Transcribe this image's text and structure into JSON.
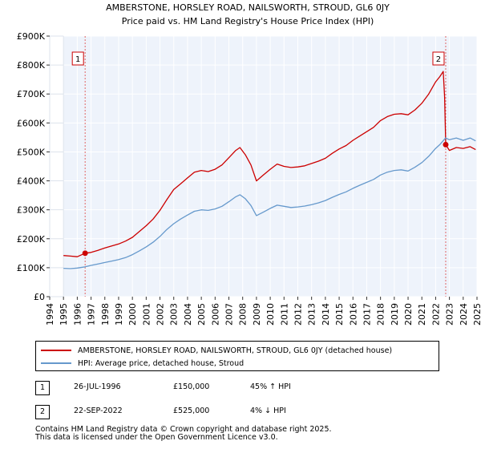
{
  "chart_data": {
    "type": "line",
    "title": "AMBERSTONE, HORSLEY ROAD, NAILSWORTH, STROUD, GL6 0JY",
    "subtitle": "Price paid vs. HM Land Registry's House Price Index (HPI)",
    "xlim": [
      1994,
      2025
    ],
    "ylim": [
      0,
      900000
    ],
    "x_ticks": [
      1994,
      1995,
      1996,
      1997,
      1998,
      1999,
      2000,
      2001,
      2002,
      2003,
      2004,
      2005,
      2006,
      2007,
      2008,
      2009,
      2010,
      2011,
      2012,
      2013,
      2014,
      2015,
      2016,
      2017,
      2018,
      2019,
      2020,
      2021,
      2022,
      2023,
      2024,
      2025
    ],
    "y_ticks": [
      {
        "value": 0,
        "label": "£0"
      },
      {
        "value": 100000,
        "label": "£100K"
      },
      {
        "value": 200000,
        "label": "£200K"
      },
      {
        "value": 300000,
        "label": "£300K"
      },
      {
        "value": 400000,
        "label": "£400K"
      },
      {
        "value": 500000,
        "label": "£500K"
      },
      {
        "value": 600000,
        "label": "£600K"
      },
      {
        "value": 700000,
        "label": "£700K"
      },
      {
        "value": 800000,
        "label": "£800K"
      },
      {
        "value": 900000,
        "label": "£900K"
      }
    ],
    "grid": true,
    "data_start": 1995,
    "series": [
      {
        "name": "AMBERSTONE, HORSLEY ROAD, NAILSWORTH, STROUD, GL6 0JY (detached house)",
        "color": "#cc0000",
        "points": [
          [
            1995.0,
            142000
          ],
          [
            1995.5,
            140000
          ],
          [
            1996.0,
            138000
          ],
          [
            1996.57,
            150000
          ],
          [
            1997.0,
            153000
          ],
          [
            1997.5,
            160000
          ],
          [
            1998.0,
            168000
          ],
          [
            1998.5,
            175000
          ],
          [
            1999.0,
            182000
          ],
          [
            1999.5,
            192000
          ],
          [
            2000.0,
            205000
          ],
          [
            2000.5,
            225000
          ],
          [
            2001.0,
            245000
          ],
          [
            2001.5,
            268000
          ],
          [
            2002.0,
            298000
          ],
          [
            2002.5,
            335000
          ],
          [
            2003.0,
            370000
          ],
          [
            2003.5,
            390000
          ],
          [
            2004.0,
            410000
          ],
          [
            2004.5,
            430000
          ],
          [
            2005.0,
            436000
          ],
          [
            2005.5,
            432000
          ],
          [
            2006.0,
            440000
          ],
          [
            2006.5,
            455000
          ],
          [
            2007.0,
            480000
          ],
          [
            2007.5,
            505000
          ],
          [
            2007.8,
            515000
          ],
          [
            2008.2,
            490000
          ],
          [
            2008.6,
            455000
          ],
          [
            2009.0,
            400000
          ],
          [
            2009.5,
            420000
          ],
          [
            2010.0,
            440000
          ],
          [
            2010.5,
            458000
          ],
          [
            2011.0,
            450000
          ],
          [
            2011.5,
            446000
          ],
          [
            2012.0,
            448000
          ],
          [
            2012.5,
            452000
          ],
          [
            2013.0,
            460000
          ],
          [
            2013.5,
            468000
          ],
          [
            2014.0,
            478000
          ],
          [
            2014.5,
            495000
          ],
          [
            2015.0,
            510000
          ],
          [
            2015.5,
            522000
          ],
          [
            2016.0,
            540000
          ],
          [
            2016.5,
            555000
          ],
          [
            2017.0,
            570000
          ],
          [
            2017.5,
            585000
          ],
          [
            2018.0,
            608000
          ],
          [
            2018.5,
            622000
          ],
          [
            2019.0,
            630000
          ],
          [
            2019.5,
            632000
          ],
          [
            2020.0,
            628000
          ],
          [
            2020.5,
            645000
          ],
          [
            2021.0,
            668000
          ],
          [
            2021.5,
            700000
          ],
          [
            2022.0,
            742000
          ],
          [
            2022.3,
            760000
          ],
          [
            2022.55,
            778000
          ],
          [
            2022.65,
            690000
          ],
          [
            2022.73,
            525000
          ],
          [
            2023.0,
            505000
          ],
          [
            2023.5,
            515000
          ],
          [
            2024.0,
            512000
          ],
          [
            2024.5,
            518000
          ],
          [
            2024.9,
            508000
          ]
        ]
      },
      {
        "name": "HPI: Average price, detached house, Stroud",
        "color": "#6699cc",
        "points": [
          [
            1995.0,
            98000
          ],
          [
            1995.5,
            97000
          ],
          [
            1996.0,
            99000
          ],
          [
            1996.57,
            103000
          ],
          [
            1997.0,
            108000
          ],
          [
            1997.5,
            113000
          ],
          [
            1998.0,
            118000
          ],
          [
            1998.5,
            123000
          ],
          [
            1999.0,
            128000
          ],
          [
            1999.5,
            135000
          ],
          [
            2000.0,
            145000
          ],
          [
            2000.5,
            158000
          ],
          [
            2001.0,
            172000
          ],
          [
            2001.5,
            188000
          ],
          [
            2002.0,
            208000
          ],
          [
            2002.5,
            232000
          ],
          [
            2003.0,
            252000
          ],
          [
            2003.5,
            268000
          ],
          [
            2004.0,
            282000
          ],
          [
            2004.5,
            295000
          ],
          [
            2005.0,
            300000
          ],
          [
            2005.5,
            298000
          ],
          [
            2006.0,
            303000
          ],
          [
            2006.5,
            312000
          ],
          [
            2007.0,
            328000
          ],
          [
            2007.5,
            345000
          ],
          [
            2007.8,
            352000
          ],
          [
            2008.2,
            338000
          ],
          [
            2008.6,
            315000
          ],
          [
            2009.0,
            280000
          ],
          [
            2009.5,
            292000
          ],
          [
            2010.0,
            305000
          ],
          [
            2010.5,
            316000
          ],
          [
            2011.0,
            312000
          ],
          [
            2011.5,
            308000
          ],
          [
            2012.0,
            310000
          ],
          [
            2012.5,
            313000
          ],
          [
            2013.0,
            318000
          ],
          [
            2013.5,
            324000
          ],
          [
            2014.0,
            332000
          ],
          [
            2014.5,
            343000
          ],
          [
            2015.0,
            353000
          ],
          [
            2015.5,
            362000
          ],
          [
            2016.0,
            374000
          ],
          [
            2016.5,
            385000
          ],
          [
            2017.0,
            395000
          ],
          [
            2017.5,
            405000
          ],
          [
            2018.0,
            420000
          ],
          [
            2018.5,
            430000
          ],
          [
            2019.0,
            436000
          ],
          [
            2019.5,
            438000
          ],
          [
            2020.0,
            434000
          ],
          [
            2020.5,
            447000
          ],
          [
            2021.0,
            463000
          ],
          [
            2021.5,
            485000
          ],
          [
            2022.0,
            512000
          ],
          [
            2022.3,
            525000
          ],
          [
            2022.72,
            548000
          ],
          [
            2023.0,
            542000
          ],
          [
            2023.5,
            548000
          ],
          [
            2024.0,
            540000
          ],
          [
            2024.5,
            548000
          ],
          [
            2024.9,
            538000
          ]
        ]
      }
    ],
    "annotations": [
      {
        "label": "1",
        "x": 1996.57,
        "value": 150000
      },
      {
        "label": "2",
        "x": 2022.73,
        "value": 525000
      }
    ]
  },
  "legend": {
    "items": [
      {
        "label": "AMBERSTONE, HORSLEY ROAD, NAILSWORTH, STROUD, GL6 0JY (detached house)",
        "color": "#cc0000"
      },
      {
        "label": "HPI: Average price, detached house, Stroud",
        "color": "#6699cc"
      }
    ]
  },
  "sales": [
    {
      "marker": "1",
      "date": "26-JUL-1996",
      "price": "£150,000",
      "hpi": "45% ↑ HPI"
    },
    {
      "marker": "2",
      "date": "22-SEP-2022",
      "price": "£525,000",
      "hpi": "4% ↓ HPI"
    }
  ],
  "footer": {
    "line1": "Contains HM Land Registry data © Crown copyright and database right 2025.",
    "line2": "This data is licensed under the Open Government Licence v3.0."
  }
}
